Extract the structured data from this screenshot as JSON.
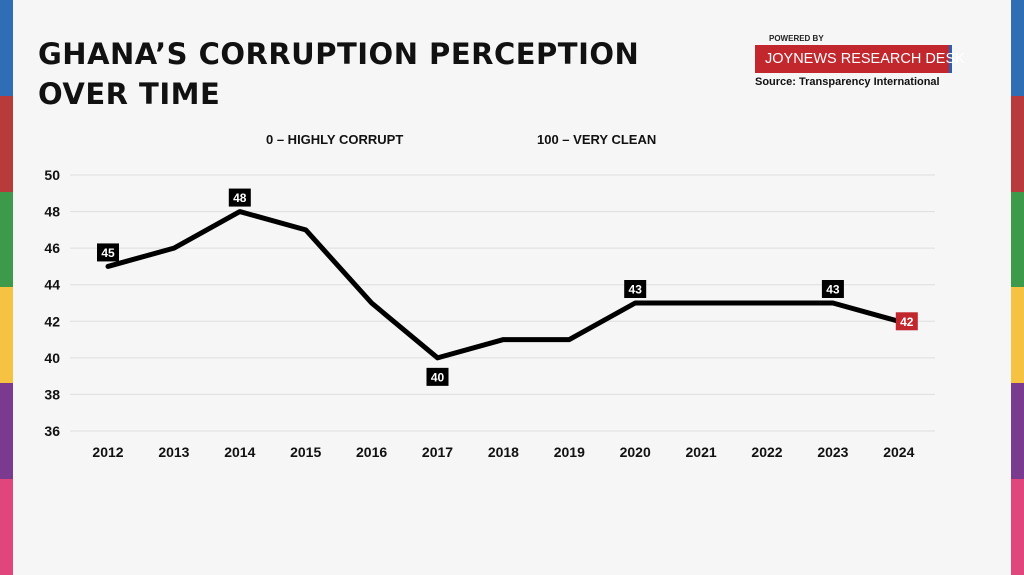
{
  "header": {
    "title": "GHANA’S CORRUPTION PERCEPTION OVER TIME",
    "powered_by": "POWERED BY",
    "brand": "JOYNEWS RESEARCH DESK",
    "source": "Source: Transparency International"
  },
  "scale_note": {
    "low": "0 – HIGHLY CORRUPT",
    "high": "100 – VERY CLEAN"
  },
  "colors": {
    "line": "#000000",
    "label_bg": "#000000",
    "highlight": "#c1272d",
    "grid": "#dedede",
    "stripes": [
      "#2f6db5",
      "#b83a3a",
      "#3d9a4a",
      "#f5c242",
      "#7a3a8f",
      "#e0457b"
    ]
  },
  "chart_data": {
    "type": "line",
    "title": "GHANA’S CORRUPTION PERCEPTION OVER TIME",
    "xlabel": "",
    "ylabel": "",
    "x": [
      "2012",
      "2013",
      "2014",
      "2015",
      "2016",
      "2017",
      "2018",
      "2019",
      "2020",
      "2021",
      "2022",
      "2023",
      "2024"
    ],
    "series": [
      {
        "values": [
          45,
          46,
          48,
          47,
          43,
          40,
          41,
          41,
          43,
          43,
          43,
          43,
          42
        ]
      }
    ],
    "ylim": [
      36,
      50
    ],
    "yticks": [
      36,
      38,
      40,
      42,
      44,
      46,
      48,
      50
    ],
    "data_labels": [
      {
        "x": "2012",
        "value": 45,
        "position": "above"
      },
      {
        "x": "2014",
        "value": 48,
        "position": "above"
      },
      {
        "x": "2017",
        "value": 40,
        "position": "below"
      },
      {
        "x": "2020",
        "value": 43,
        "position": "above"
      },
      {
        "x": "2023",
        "value": 43,
        "position": "above"
      },
      {
        "x": "2024",
        "value": 42,
        "position": "right",
        "highlight": true
      }
    ],
    "grid": true,
    "legend": "none"
  }
}
